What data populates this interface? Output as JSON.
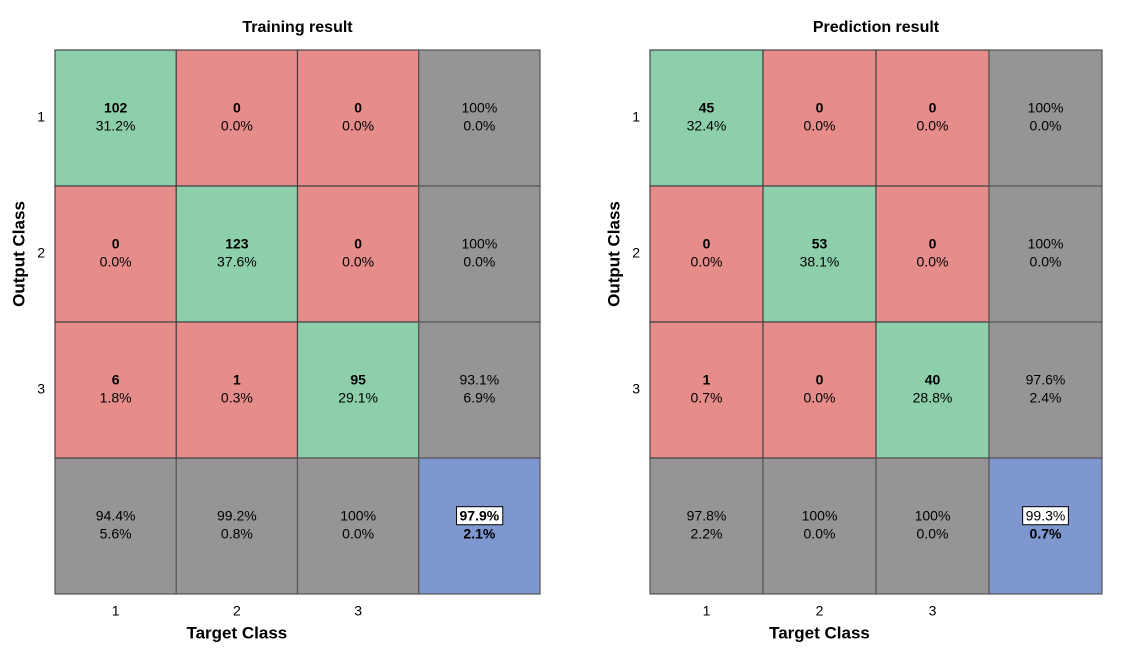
{
  "chart_data": [
    {
      "type": "confusion",
      "title": "Training result",
      "xlabel": "Target Class",
      "ylabel": "Output Class",
      "categories": [
        "1",
        "2",
        "3"
      ],
      "counts": [
        [
          102,
          0,
          0
        ],
        [
          0,
          123,
          0
        ],
        [
          6,
          1,
          95
        ]
      ],
      "percent_labels": [
        [
          "31.2%",
          "0.0%",
          "0.0%"
        ],
        [
          "0.0%",
          "37.6%",
          "0.0%"
        ],
        [
          "1.8%",
          "0.3%",
          "29.1%"
        ]
      ],
      "row_correct_labels": [
        "100%",
        "100%",
        "93.1%"
      ],
      "row_error_labels": [
        "0.0%",
        "0.0%",
        "6.9%"
      ],
      "col_correct_labels": [
        "94.4%",
        "99.2%",
        "100%"
      ],
      "col_error_labels": [
        "5.6%",
        "0.8%",
        "0.0%"
      ],
      "overall_correct_label": "97.9%",
      "overall_error_label": "2.1%",
      "overall_correct_bold": true,
      "colors": {
        "correct": "#8dcfab",
        "wrong": "#e68c8a",
        "summary": "#959595",
        "overall": "#7f97cf",
        "correct_text": "#1f6b2c",
        "error_text": "#7a1717"
      }
    },
    {
      "type": "confusion",
      "title": "Prediction result",
      "xlabel": "Target Class",
      "ylabel": "Output Class",
      "categories": [
        "1",
        "2",
        "3"
      ],
      "counts": [
        [
          45,
          0,
          0
        ],
        [
          0,
          53,
          0
        ],
        [
          1,
          0,
          40
        ]
      ],
      "percent_labels": [
        [
          "32.4%",
          "0.0%",
          "0.0%"
        ],
        [
          "0.0%",
          "38.1%",
          "0.0%"
        ],
        [
          "0.7%",
          "0.0%",
          "28.8%"
        ]
      ],
      "row_correct_labels": [
        "100%",
        "100%",
        "97.6%"
      ],
      "row_error_labels": [
        "0.0%",
        "0.0%",
        "2.4%"
      ],
      "col_correct_labels": [
        "97.8%",
        "100%",
        "100%"
      ],
      "col_error_labels": [
        "2.2%",
        "0.0%",
        "0.0%"
      ],
      "overall_correct_label": "99.3%",
      "overall_error_label": "0.7%",
      "overall_correct_bold": false,
      "colors": {
        "correct": "#8dcfab",
        "wrong": "#e68c8a",
        "summary": "#959595",
        "overall": "#7f97cf",
        "correct_text": "#1f6b2c",
        "error_text": "#7a1717"
      }
    }
  ]
}
